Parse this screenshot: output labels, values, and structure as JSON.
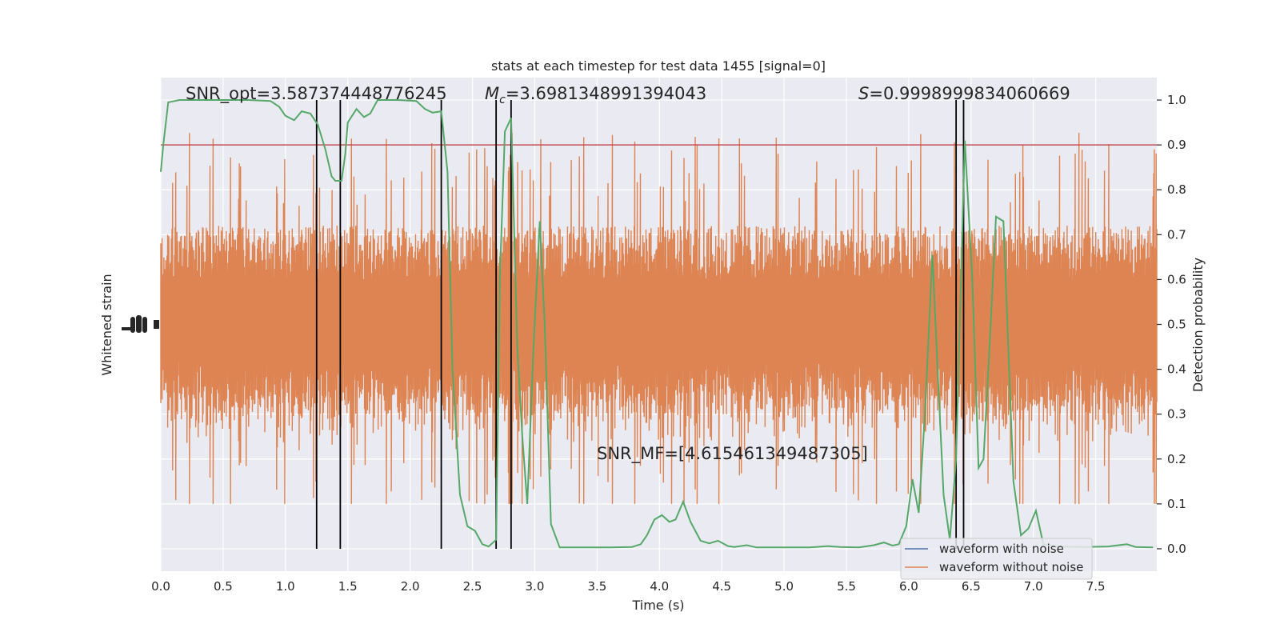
{
  "chart_data": {
    "type": "line",
    "title": "stats at each timestep for test data 1455 [signal=0]",
    "xlabel": "Time (s)",
    "ylabel_left": "Whitened strain",
    "ylabel_right": "Detection probability",
    "xlim": [
      0.0,
      7.99
    ],
    "ylim_right": [
      -0.05,
      1.05
    ],
    "grid": true,
    "background_color": "#eaeaf2",
    "x_ticks": [
      "0.0",
      "0.5",
      "1.0",
      "1.5",
      "2.0",
      "2.5",
      "3.0",
      "3.5",
      "4.0",
      "4.5",
      "5.0",
      "5.5",
      "6.0",
      "6.5",
      "7.0",
      "7.5"
    ],
    "y_ticks_right": [
      "0.0",
      "0.1",
      "0.2",
      "0.3",
      "0.4",
      "0.5",
      "0.6",
      "0.7",
      "0.8",
      "0.9",
      "1.0"
    ],
    "legend": {
      "placement": "lower-right",
      "entries": [
        {
          "label": "waveform with noise",
          "color": "#4c72b0"
        },
        {
          "label": "waveform without noise",
          "color": "#dd8452"
        }
      ]
    },
    "annotations": {
      "snr_opt": "SNR_opt=3.587374448776245",
      "mc_symbol": "M",
      "mc_subscript": "c",
      "mc_value": "=3.6981348991394043",
      "s_symbol": "S",
      "s_value": "=0.9998999834060669",
      "snr_mf": "SNR_MF=[4.615461349487305]"
    },
    "threshold": {
      "value": 0.9,
      "color": "#c44e52"
    },
    "vertical_markers": [
      1.25,
      1.44,
      2.25,
      2.69,
      2.81,
      6.38,
      6.44
    ],
    "strain_series": {
      "name": "waveform without noise",
      "color": "#dd8452",
      "center": 0.5,
      "typical_range": [
        0.28,
        0.72
      ],
      "spike_extent": [
        0.1,
        0.96
      ]
    },
    "probability_series": {
      "color": "#55a868",
      "points": [
        [
          0.0,
          0.84
        ],
        [
          0.02,
          0.9
        ],
        [
          0.06,
          0.995
        ],
        [
          0.15,
          1.0
        ],
        [
          0.3,
          1.0
        ],
        [
          0.5,
          1.0
        ],
        [
          0.7,
          1.0
        ],
        [
          0.88,
          0.998
        ],
        [
          0.95,
          0.985
        ],
        [
          1.0,
          0.965
        ],
        [
          1.07,
          0.955
        ],
        [
          1.13,
          0.975
        ],
        [
          1.2,
          0.97
        ],
        [
          1.26,
          0.945
        ],
        [
          1.32,
          0.89
        ],
        [
          1.37,
          0.83
        ],
        [
          1.4,
          0.82
        ],
        [
          1.45,
          0.82
        ],
        [
          1.48,
          0.88
        ],
        [
          1.5,
          0.95
        ],
        [
          1.57,
          0.98
        ],
        [
          1.63,
          0.962
        ],
        [
          1.68,
          0.97
        ],
        [
          1.74,
          1.0
        ],
        [
          1.9,
          1.0
        ],
        [
          2.05,
          0.998
        ],
        [
          2.12,
          0.98
        ],
        [
          2.18,
          0.972
        ],
        [
          2.25,
          0.975
        ],
        [
          2.3,
          0.84
        ],
        [
          2.34,
          0.4
        ],
        [
          2.4,
          0.12
        ],
        [
          2.46,
          0.05
        ],
        [
          2.52,
          0.04
        ],
        [
          2.58,
          0.01
        ],
        [
          2.63,
          0.005
        ],
        [
          2.69,
          0.02
        ],
        [
          2.72,
          0.6
        ],
        [
          2.76,
          0.93
        ],
        [
          2.81,
          0.96
        ],
        [
          2.86,
          0.45
        ],
        [
          2.9,
          0.25
        ],
        [
          2.94,
          0.1
        ],
        [
          2.99,
          0.45
        ],
        [
          3.04,
          0.73
        ],
        [
          3.08,
          0.5
        ],
        [
          3.13,
          0.055
        ],
        [
          3.2,
          0.003
        ],
        [
          3.35,
          0.003
        ],
        [
          3.6,
          0.003
        ],
        [
          3.78,
          0.004
        ],
        [
          3.85,
          0.01
        ],
        [
          3.9,
          0.03
        ],
        [
          3.96,
          0.065
        ],
        [
          4.02,
          0.075
        ],
        [
          4.08,
          0.06
        ],
        [
          4.13,
          0.065
        ],
        [
          4.19,
          0.105
        ],
        [
          4.25,
          0.06
        ],
        [
          4.33,
          0.018
        ],
        [
          4.4,
          0.012
        ],
        [
          4.47,
          0.018
        ],
        [
          4.55,
          0.006
        ],
        [
          4.6,
          0.004
        ],
        [
          4.7,
          0.008
        ],
        [
          4.78,
          0.003
        ],
        [
          5.0,
          0.003
        ],
        [
          5.2,
          0.003
        ],
        [
          5.35,
          0.006
        ],
        [
          5.45,
          0.004
        ],
        [
          5.6,
          0.003
        ],
        [
          5.72,
          0.008
        ],
        [
          5.8,
          0.014
        ],
        [
          5.87,
          0.007
        ],
        [
          5.92,
          0.01
        ],
        [
          5.98,
          0.05
        ],
        [
          6.03,
          0.155
        ],
        [
          6.08,
          0.08
        ],
        [
          6.13,
          0.3
        ],
        [
          6.19,
          0.655
        ],
        [
          6.24,
          0.35
        ],
        [
          6.28,
          0.12
        ],
        [
          6.33,
          0.02
        ],
        [
          6.38,
          0.2
        ],
        [
          6.45,
          0.91
        ],
        [
          6.51,
          0.6
        ],
        [
          6.56,
          0.18
        ],
        [
          6.6,
          0.2
        ],
        [
          6.65,
          0.46
        ],
        [
          6.7,
          0.74
        ],
        [
          6.76,
          0.73
        ],
        [
          6.84,
          0.15
        ],
        [
          6.9,
          0.03
        ],
        [
          6.96,
          0.045
        ],
        [
          7.02,
          0.085
        ],
        [
          7.08,
          0.01
        ],
        [
          7.2,
          0.005
        ],
        [
          7.4,
          0.004
        ],
        [
          7.6,
          0.005
        ],
        [
          7.75,
          0.01
        ],
        [
          7.82,
          0.004
        ],
        [
          7.96,
          0.003
        ]
      ]
    }
  }
}
